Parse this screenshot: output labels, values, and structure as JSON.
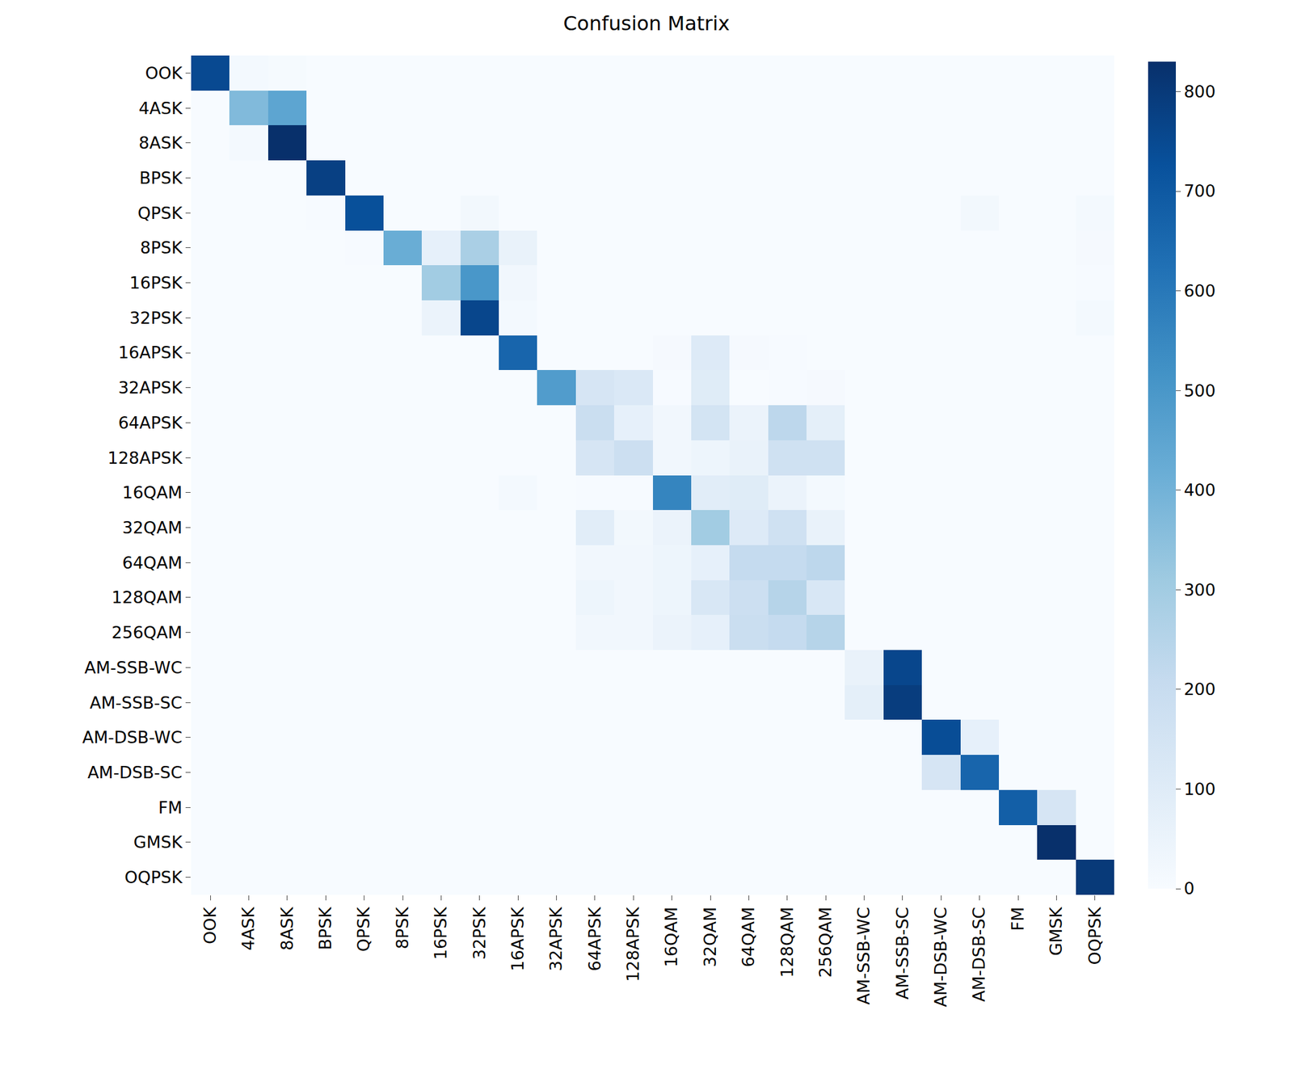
{
  "chart_data": {
    "type": "heatmap",
    "title": "Confusion Matrix",
    "x": [
      "OOK",
      "4ASK",
      "8ASK",
      "BPSK",
      "QPSK",
      "8PSK",
      "16PSK",
      "32PSK",
      "16APSK",
      "32APSK",
      "64APSK",
      "128APSK",
      "16QAM",
      "32QAM",
      "64QAM",
      "128QAM",
      "256QAM",
      "AM-SSB-WC",
      "AM-SSB-SC",
      "AM-DSB-WC",
      "AM-DSB-SC",
      "FM",
      "GMSK",
      "OQPSK"
    ],
    "y": [
      "OOK",
      "4ASK",
      "8ASK",
      "BPSK",
      "QPSK",
      "8PSK",
      "16PSK",
      "32PSK",
      "16APSK",
      "32APSK",
      "64APSK",
      "128APSK",
      "16QAM",
      "32QAM",
      "64QAM",
      "128QAM",
      "256QAM",
      "AM-SSB-WC",
      "AM-SSB-SC",
      "AM-DSB-WC",
      "AM-DSB-SC",
      "FM",
      "GMSK",
      "OQPSK"
    ],
    "z": [
      [
        750,
        15,
        8,
        0,
        0,
        0,
        0,
        0,
        0,
        0,
        0,
        0,
        0,
        0,
        0,
        0,
        0,
        0,
        0,
        0,
        0,
        0,
        0,
        0
      ],
      [
        0,
        370,
        450,
        0,
        0,
        0,
        0,
        0,
        0,
        0,
        0,
        0,
        0,
        0,
        0,
        0,
        0,
        0,
        0,
        0,
        0,
        0,
        0,
        0
      ],
      [
        0,
        15,
        830,
        0,
        0,
        0,
        0,
        0,
        0,
        0,
        0,
        0,
        0,
        0,
        0,
        0,
        0,
        0,
        0,
        0,
        0,
        0,
        0,
        0
      ],
      [
        0,
        0,
        0,
        780,
        0,
        0,
        0,
        0,
        0,
        0,
        0,
        0,
        0,
        0,
        0,
        0,
        0,
        0,
        0,
        0,
        0,
        0,
        0,
        0
      ],
      [
        0,
        0,
        0,
        5,
        730,
        0,
        0,
        20,
        0,
        0,
        0,
        0,
        0,
        0,
        0,
        0,
        0,
        0,
        0,
        0,
        20,
        0,
        0,
        15
      ],
      [
        0,
        0,
        0,
        0,
        5,
        420,
        70,
        280,
        60,
        0,
        0,
        0,
        0,
        0,
        0,
        0,
        0,
        0,
        0,
        0,
        0,
        0,
        0,
        10
      ],
      [
        0,
        0,
        0,
        0,
        0,
        0,
        300,
        500,
        25,
        0,
        0,
        0,
        0,
        0,
        0,
        0,
        0,
        0,
        0,
        0,
        0,
        0,
        0,
        5
      ],
      [
        0,
        0,
        0,
        0,
        0,
        0,
        50,
        760,
        15,
        0,
        0,
        0,
        0,
        0,
        0,
        0,
        0,
        0,
        0,
        0,
        0,
        0,
        0,
        15
      ],
      [
        0,
        0,
        0,
        0,
        0,
        0,
        0,
        0,
        660,
        0,
        0,
        0,
        10,
        110,
        10,
        5,
        0,
        0,
        0,
        0,
        0,
        0,
        0,
        0
      ],
      [
        0,
        0,
        0,
        0,
        0,
        0,
        0,
        0,
        0,
        480,
        140,
        120,
        5,
        100,
        0,
        5,
        10,
        0,
        0,
        0,
        0,
        0,
        0,
        0
      ],
      [
        0,
        0,
        0,
        0,
        0,
        0,
        0,
        0,
        0,
        0,
        190,
        70,
        25,
        150,
        50,
        230,
        80,
        0,
        0,
        0,
        0,
        0,
        0,
        0
      ],
      [
        0,
        0,
        0,
        0,
        0,
        0,
        0,
        0,
        0,
        0,
        140,
        180,
        25,
        40,
        60,
        170,
        170,
        0,
        0,
        0,
        0,
        0,
        0,
        0
      ],
      [
        0,
        0,
        0,
        0,
        0,
        0,
        0,
        0,
        15,
        0,
        5,
        5,
        560,
        90,
        100,
        50,
        15,
        0,
        0,
        0,
        0,
        0,
        0,
        0
      ],
      [
        0,
        0,
        0,
        0,
        0,
        0,
        0,
        0,
        0,
        0,
        90,
        20,
        50,
        300,
        110,
        170,
        60,
        0,
        0,
        0,
        0,
        0,
        0,
        0
      ],
      [
        0,
        0,
        0,
        0,
        0,
        0,
        0,
        0,
        0,
        0,
        25,
        25,
        40,
        70,
        210,
        210,
        230,
        0,
        0,
        0,
        0,
        0,
        0,
        0
      ],
      [
        0,
        0,
        0,
        0,
        0,
        0,
        0,
        0,
        0,
        0,
        40,
        25,
        40,
        130,
        180,
        250,
        130,
        0,
        0,
        0,
        0,
        0,
        0,
        0
      ],
      [
        0,
        0,
        0,
        0,
        0,
        0,
        0,
        0,
        0,
        0,
        25,
        25,
        50,
        70,
        190,
        210,
        250,
        0,
        0,
        0,
        0,
        0,
        0,
        0
      ],
      [
        0,
        0,
        0,
        0,
        0,
        0,
        0,
        0,
        0,
        0,
        0,
        0,
        0,
        0,
        0,
        0,
        0,
        60,
        760,
        0,
        0,
        0,
        0,
        0
      ],
      [
        0,
        0,
        0,
        0,
        0,
        0,
        0,
        0,
        0,
        0,
        0,
        0,
        0,
        0,
        0,
        0,
        0,
        80,
        790,
        0,
        0,
        0,
        0,
        0
      ],
      [
        0,
        0,
        0,
        0,
        0,
        0,
        0,
        0,
        0,
        0,
        0,
        0,
        0,
        0,
        0,
        0,
        0,
        0,
        0,
        740,
        70,
        0,
        0,
        0
      ],
      [
        0,
        0,
        0,
        0,
        0,
        0,
        0,
        0,
        0,
        0,
        0,
        0,
        0,
        0,
        0,
        0,
        0,
        0,
        0,
        140,
        660,
        0,
        0,
        0
      ],
      [
        0,
        0,
        0,
        0,
        0,
        0,
        0,
        0,
        0,
        0,
        0,
        0,
        0,
        0,
        0,
        0,
        0,
        0,
        0,
        0,
        0,
        680,
        140,
        0
      ],
      [
        0,
        0,
        0,
        0,
        0,
        0,
        0,
        0,
        0,
        0,
        0,
        0,
        0,
        0,
        0,
        0,
        0,
        0,
        0,
        0,
        0,
        0,
        830,
        0
      ],
      [
        0,
        0,
        0,
        0,
        0,
        0,
        0,
        0,
        0,
        0,
        0,
        0,
        0,
        0,
        0,
        0,
        0,
        0,
        0,
        0,
        0,
        0,
        0,
        800
      ]
    ],
    "zlim": [
      0,
      830
    ],
    "zticks": [
      0,
      100,
      200,
      300,
      400,
      500,
      600,
      700,
      800
    ]
  }
}
